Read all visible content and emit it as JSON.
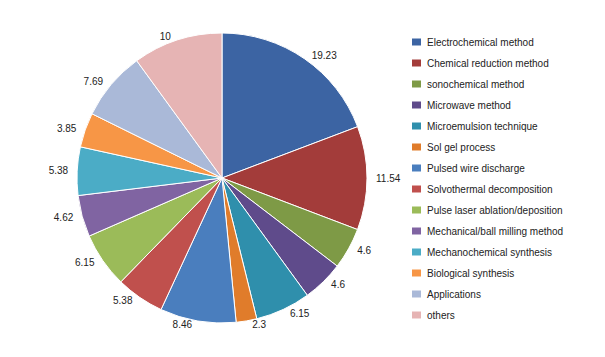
{
  "chart_data": {
    "type": "pie",
    "categories": [
      "Electrochemical method",
      "Chemical reduction method",
      "sonochemical method",
      "Microwave method",
      "Microemulsion technique",
      "Sol gel process",
      "Pulsed wire discharge",
      "Solvothermal decomposition",
      "Pulse laser ablation/deposition",
      "Mechanical/ball milling method",
      "Mechanochemical synthesis",
      "Biological synthesis",
      "Applications",
      "others"
    ],
    "values": [
      19.23,
      11.54,
      4.6,
      4.6,
      6.15,
      2.3,
      8.46,
      5.38,
      6.15,
      4.62,
      5.38,
      3.85,
      7.69,
      10
    ],
    "colors": [
      "#3c64a3",
      "#a33c3a",
      "#7e9a46",
      "#5f4b8b",
      "#2f8fac",
      "#e07c2b",
      "#4a7ebe",
      "#c0504d",
      "#9bbb59",
      "#8064a2",
      "#4bacc6",
      "#f79646",
      "#aab9d8",
      "#e6b4b4"
    ],
    "legend": "right",
    "data_labels": true
  }
}
